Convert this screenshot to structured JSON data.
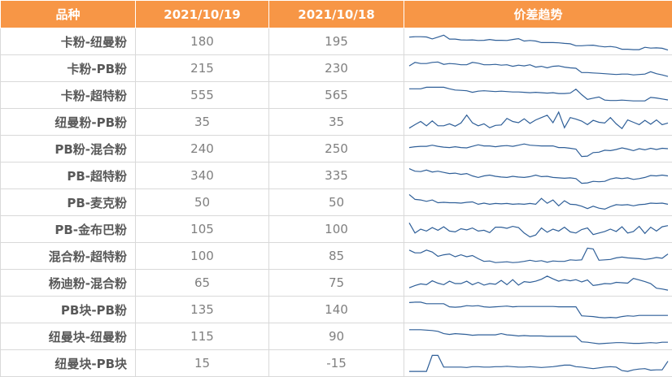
{
  "header": {
    "name": "品种",
    "date1": "2021/10/19",
    "date2": "2021/10/18",
    "trend": "价差趋势"
  },
  "colors": {
    "header_bg": "#f79646",
    "sparkline": "#2f5f98"
  },
  "rows": [
    {
      "name": "卡粉-纽曼粉",
      "v1": "180",
      "v2": "195",
      "trend": [
        0.72,
        0.74,
        0.74,
        0.73,
        0.63,
        0.72,
        0.82,
        0.62,
        0.62,
        0.58,
        0.57,
        0.58,
        0.55,
        0.56,
        0.6,
        0.56,
        0.56,
        0.55,
        0.6,
        0.64,
        0.52,
        0.55,
        0.52,
        0.44,
        0.44,
        0.44,
        0.43,
        0.4,
        0.38,
        0.28,
        0.28,
        0.3,
        0.31,
        0.26,
        0.22,
        0.24,
        0.2,
        0.1,
        0.1,
        0.08,
        0.08,
        0.2,
        0.16,
        0.17,
        0.15,
        0.06
      ]
    },
    {
      "name": "卡粉-PB粉",
      "v1": "215",
      "v2": "230",
      "trend": [
        0.62,
        0.8,
        0.74,
        0.74,
        0.8,
        0.82,
        0.7,
        0.74,
        0.72,
        0.68,
        0.68,
        0.8,
        0.76,
        0.68,
        0.68,
        0.7,
        0.66,
        0.68,
        0.6,
        0.66,
        0.62,
        0.68,
        0.56,
        0.6,
        0.52,
        0.6,
        0.62,
        0.56,
        0.52,
        0.5,
        0.28,
        0.28,
        0.26,
        0.24,
        0.22,
        0.2,
        0.18,
        0.2,
        0.2,
        0.16,
        0.18,
        0.2,
        0.32,
        0.22,
        0.16,
        0.08
      ]
    },
    {
      "name": "卡粉-超特粉",
      "v1": "555",
      "v2": "565",
      "trend": [
        0.82,
        0.82,
        0.82,
        0.9,
        0.9,
        0.9,
        0.9,
        0.82,
        0.76,
        0.74,
        0.72,
        0.64,
        0.7,
        0.72,
        0.7,
        0.68,
        0.7,
        0.68,
        0.66,
        0.66,
        0.64,
        0.62,
        0.64,
        0.62,
        0.6,
        0.62,
        0.58,
        0.58,
        0.6,
        0.8,
        0.52,
        0.28,
        0.34,
        0.4,
        0.24,
        0.22,
        0.22,
        0.24,
        0.22,
        0.2,
        0.2,
        0.2,
        0.38,
        0.35,
        0.3,
        0.25
      ]
    },
    {
      "name": "纽曼粉-PB粉",
      "v1": "35",
      "v2": "35",
      "trend": [
        0.18,
        0.36,
        0.52,
        0.3,
        0.55,
        0.3,
        0.3,
        0.4,
        0.28,
        0.44,
        0.85,
        0.45,
        0.3,
        0.4,
        0.2,
        0.32,
        0.34,
        0.68,
        0.52,
        0.46,
        0.66,
        0.42,
        0.6,
        0.72,
        0.84,
        0.46,
        1.0,
        0.2,
        0.72,
        0.64,
        0.54,
        0.36,
        0.58,
        0.48,
        0.44,
        0.72,
        0.4,
        0.16,
        0.6,
        0.48,
        0.36,
        0.58,
        0.38,
        0.6,
        0.36,
        0.44
      ]
    },
    {
      "name": "PB粉-混合粉",
      "v1": "240",
      "v2": "250",
      "trend": [
        0.56,
        0.6,
        0.62,
        0.62,
        0.68,
        0.62,
        0.58,
        0.56,
        0.6,
        0.56,
        0.54,
        0.62,
        0.7,
        0.64,
        0.64,
        0.6,
        0.64,
        0.66,
        0.62,
        0.68,
        0.74,
        0.68,
        0.66,
        0.64,
        0.64,
        0.64,
        0.56,
        0.56,
        0.52,
        0.48,
        0.1,
        0.12,
        0.3,
        0.32,
        0.42,
        0.4,
        0.46,
        0.54,
        0.48,
        0.4,
        0.5,
        0.44,
        0.52,
        0.46,
        0.52,
        0.5
      ]
    },
    {
      "name": "PB-超特粉",
      "v1": "340",
      "v2": "335",
      "trend": [
        0.85,
        0.72,
        0.7,
        0.78,
        0.68,
        0.72,
        0.66,
        0.6,
        0.62,
        0.56,
        0.6,
        0.48,
        0.4,
        0.48,
        0.52,
        0.46,
        0.42,
        0.4,
        0.46,
        0.42,
        0.4,
        0.44,
        0.52,
        0.44,
        0.46,
        0.4,
        0.38,
        0.36,
        0.38,
        0.34,
        0.1,
        0.12,
        0.2,
        0.18,
        0.2,
        0.32,
        0.38,
        0.34,
        0.38,
        0.3,
        0.34,
        0.4,
        0.5,
        0.48,
        0.52,
        0.48
      ]
    },
    {
      "name": "PB-麦克粉",
      "v1": "50",
      "v2": "50",
      "trend": [
        0.9,
        0.65,
        0.62,
        0.55,
        0.62,
        0.48,
        0.5,
        0.48,
        0.48,
        0.46,
        0.5,
        0.52,
        0.4,
        0.46,
        0.4,
        0.44,
        0.42,
        0.44,
        0.4,
        0.42,
        0.4,
        0.44,
        0.4,
        0.7,
        0.45,
        0.62,
        0.32,
        0.58,
        0.4,
        0.38,
        0.3,
        0.18,
        0.3,
        0.2,
        0.15,
        0.28,
        0.38,
        0.36,
        0.38,
        0.32,
        0.38,
        0.4,
        0.46,
        0.44,
        0.46,
        0.4
      ]
    },
    {
      "name": "PB-金布巴粉",
      "v1": "105",
      "v2": "100",
      "trend": [
        0.82,
        0.3,
        0.5,
        0.4,
        0.58,
        0.44,
        0.62,
        0.4,
        0.36,
        0.52,
        0.46,
        0.56,
        0.4,
        0.44,
        0.32,
        0.6,
        0.6,
        0.54,
        0.64,
        0.58,
        0.3,
        0.1,
        0.2,
        0.56,
        0.34,
        0.5,
        0.4,
        0.6,
        0.36,
        0.3,
        0.48,
        0.56,
        0.22,
        0.3,
        0.38,
        0.5,
        0.38,
        0.62,
        0.3,
        0.38,
        0.64,
        0.28,
        0.6,
        0.4,
        0.62,
        0.68
      ]
    },
    {
      "name": "混合粉-超特粉",
      "v1": "100",
      "v2": "85",
      "trend": [
        0.8,
        0.66,
        0.66,
        0.8,
        0.7,
        0.48,
        0.56,
        0.6,
        0.46,
        0.56,
        0.46,
        0.52,
        0.36,
        0.22,
        0.24,
        0.16,
        0.18,
        0.2,
        0.16,
        0.18,
        0.22,
        0.28,
        0.22,
        0.26,
        0.18,
        0.24,
        0.22,
        0.22,
        0.3,
        0.28,
        0.3,
        0.9,
        0.86,
        0.28,
        0.3,
        0.32,
        0.4,
        0.44,
        0.4,
        0.38,
        0.36,
        0.32,
        0.36,
        0.42,
        0.38,
        0.6
      ]
    },
    {
      "name": "杨迪粉-混合粉",
      "v1": "65",
      "v2": "75",
      "trend": [
        0.24,
        0.36,
        0.44,
        0.4,
        0.6,
        0.48,
        0.4,
        0.58,
        0.46,
        0.46,
        0.58,
        0.4,
        0.52,
        0.38,
        0.46,
        0.42,
        0.62,
        0.4,
        0.66,
        0.38,
        0.56,
        0.52,
        0.58,
        0.68,
        0.84,
        0.7,
        0.58,
        0.66,
        0.6,
        0.66,
        0.54,
        0.64,
        0.36,
        0.4,
        0.46,
        0.44,
        0.52,
        0.5,
        0.48,
        0.72,
        0.64,
        0.56,
        0.46,
        0.22,
        0.18,
        0.12
      ]
    },
    {
      "name": "PB块-PB粉",
      "v1": "135",
      "v2": "140",
      "trend": [
        0.86,
        0.88,
        0.88,
        0.8,
        0.8,
        0.8,
        0.8,
        0.64,
        0.62,
        0.64,
        0.7,
        0.68,
        0.7,
        0.64,
        0.62,
        0.64,
        0.66,
        0.68,
        0.64,
        0.66,
        0.66,
        0.66,
        0.66,
        0.66,
        0.66,
        0.66,
        0.64,
        0.64,
        0.64,
        0.64,
        0.18,
        0.16,
        0.14,
        0.1,
        0.08,
        0.1,
        0.08,
        0.14,
        0.18,
        0.16,
        0.2,
        0.2,
        0.2,
        0.2,
        0.2,
        0.2
      ]
    },
    {
      "name": "纽曼块-纽曼粉",
      "v1": "115",
      "v2": "90",
      "trend": [
        0.84,
        0.84,
        0.84,
        0.82,
        0.8,
        0.76,
        0.64,
        0.6,
        0.64,
        0.62,
        0.6,
        0.56,
        0.58,
        0.58,
        0.58,
        0.58,
        0.64,
        0.58,
        0.56,
        0.52,
        0.54,
        0.52,
        0.52,
        0.52,
        0.5,
        0.5,
        0.5,
        0.5,
        0.5,
        0.5,
        0.22,
        0.2,
        0.16,
        0.12,
        0.14,
        0.16,
        0.18,
        0.18,
        0.16,
        0.14,
        0.14,
        0.16,
        0.18,
        0.16,
        0.2,
        0.2
      ]
    },
    {
      "name": "纽曼块-PB块",
      "v1": "15",
      "v2": "-15",
      "trend": [
        0.08,
        0.08,
        0.08,
        0.08,
        0.9,
        0.9,
        0.3,
        0.3,
        0.3,
        0.3,
        0.28,
        0.32,
        0.32,
        0.3,
        0.3,
        0.32,
        0.32,
        0.34,
        0.32,
        0.3,
        0.3,
        0.32,
        0.3,
        0.28,
        0.3,
        0.32,
        0.36,
        0.4,
        0.4,
        0.32,
        0.3,
        0.26,
        0.22,
        0.26,
        0.3,
        0.32,
        0.3,
        0.12,
        0.08,
        0.16,
        0.2,
        0.22,
        0.14,
        0.16,
        0.16,
        0.6
      ]
    }
  ]
}
